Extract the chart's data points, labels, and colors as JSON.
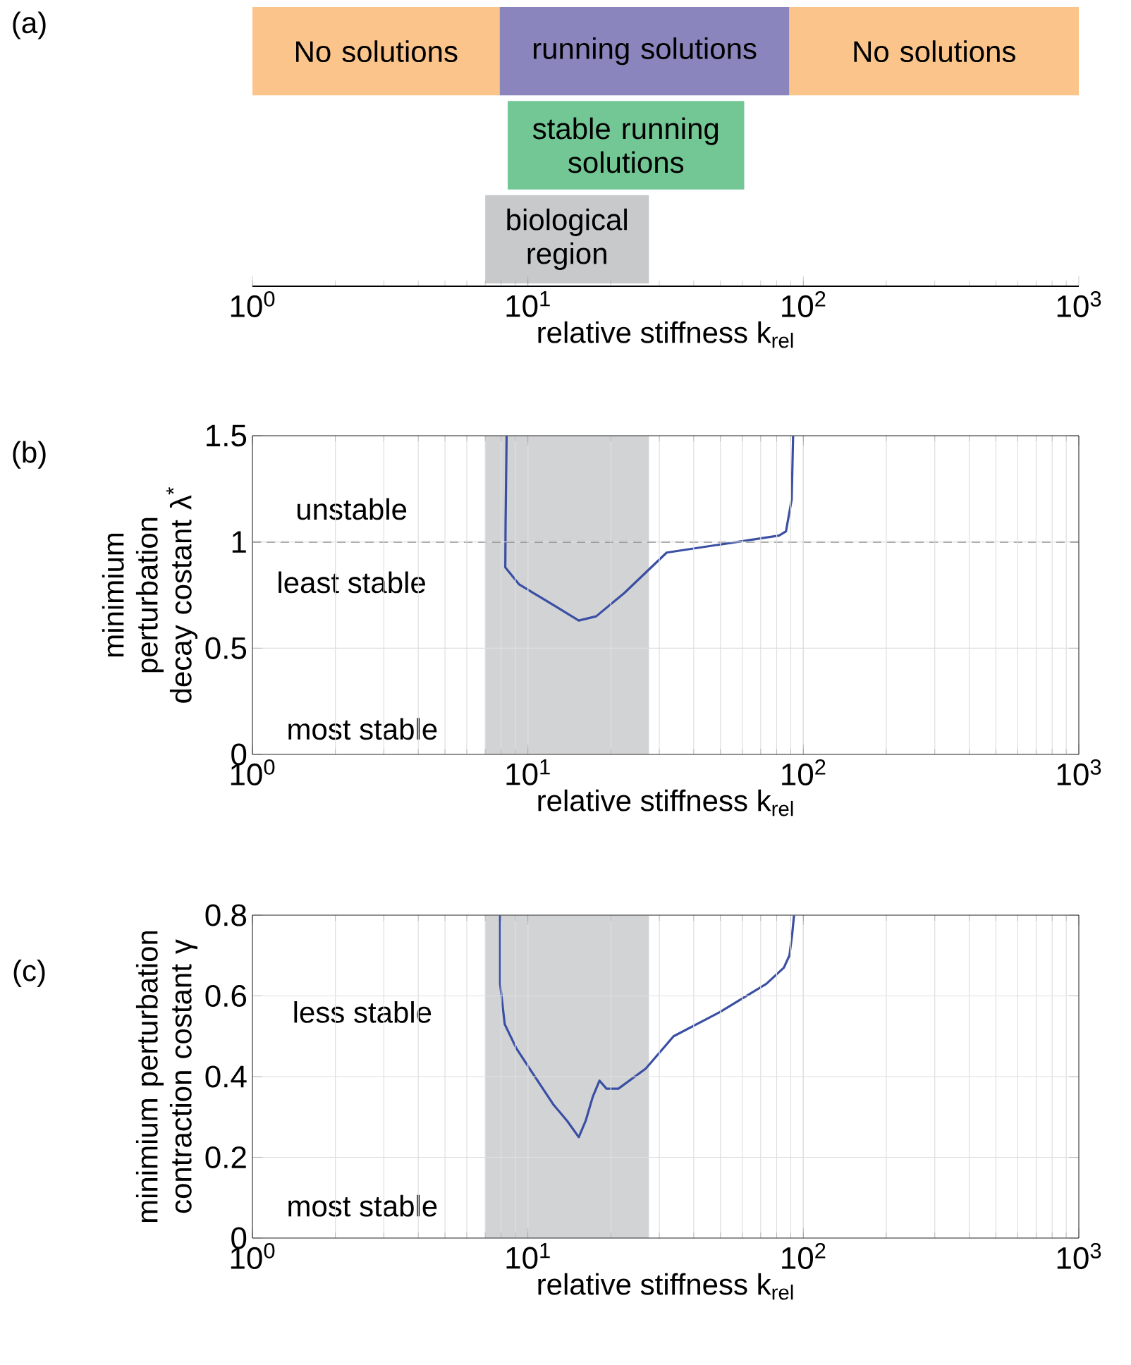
{
  "chart_data": [
    {
      "type": "bar",
      "orientation": "horizontal",
      "stacked": true,
      "log": "x",
      "categories": [
        null,
        null,
        null
      ],
      "series": [
        {
          "colors": [
            "#fbc48b",
            "#72c794",
            "#c8c9cb"
          ],
          "base": [
            1,
            8.45,
            7
          ],
          "values": [
            6.9,
            52.55,
            20.5
          ],
          "value_labels": [
            "No solutions",
            "stable running solutions",
            "biological region"
          ]
        },
        {
          "name": "running solutions",
          "color": "#8a86bd",
          "values": [
            81.1,
            null,
            null
          ]
        },
        {
          "name": "No solutions",
          "color": "#fbc48b",
          "values": [
            911,
            null,
            null
          ]
        }
      ],
      "xlim": [
        1,
        1000
      ],
      "xticks": [
        {
          "value": 1,
          "label": "10$^{0}$"
        },
        {
          "value": 10,
          "label": "10$^{1}$"
        },
        {
          "value": 100,
          "label": "10$^{2}$"
        },
        {
          "value": 1000,
          "label": "10$^{3}$"
        }
      ],
      "xlabel": "relative stiffness k$_{rel}$",
      "tick_labels": "x",
      "annotations": [
        "(a)"
      ]
    },
    {
      "type": "line",
      "log": "x",
      "grid": true,
      "series": [
        {
          "color": "#3a4fa3",
          "x": [
            8.37,
            8.3,
            8.28,
            9.3,
            12.5,
            15.3,
            17.7,
            22.4,
            31.9,
            81.6,
            86.5,
            90.7,
            91.8
          ],
          "values": [
            1.5,
            1.09,
            0.88,
            0.8,
            0.7,
            0.63,
            0.65,
            0.76,
            0.95,
            1.03,
            1.05,
            1.2,
            1.5
          ]
        }
      ],
      "xlim": [
        1,
        1000
      ],
      "xticks": [
        {
          "value": 1,
          "label": "10$^{0}$"
        },
        {
          "value": 10,
          "label": "10$^{1}$"
        },
        {
          "value": 100,
          "label": "10$^{2}$"
        },
        {
          "value": 1000,
          "label": "10$^{3}$"
        }
      ],
      "ylim": [
        0,
        1.5
      ],
      "yticks": [
        0,
        0.5,
        1,
        1.5
      ],
      "ref_lines": [
        {
          "axis": "y",
          "value": 1,
          "color": "#333333",
          "line_style": "dashed"
        }
      ],
      "bands": [
        {
          "axis": "x",
          "from": 7,
          "to": 27.5,
          "color": "#d2d3d5"
        }
      ],
      "xlabel": "relative stiffness k$_{rel}$",
      "ylabel": "minimium perturbation decay costant λ$^{*}$",
      "annotations": [
        "(b)",
        "unstable",
        "least stable",
        "most stable"
      ]
    },
    {
      "type": "line",
      "log": "x",
      "grid": true,
      "series": [
        {
          "color": "#3a4fa3",
          "x": [
            7.93,
            7.93,
            8.24,
            9.08,
            10.6,
            12.4,
            13.9,
            15.3,
            16.2,
            17.2,
            18.2,
            19.3,
            21.3,
            26.8,
            33.8,
            49.8,
            73.4,
            85,
            89,
            91,
            92.5
          ],
          "values": [
            0.8,
            0.63,
            0.53,
            0.47,
            0.4,
            0.33,
            0.29,
            0.25,
            0.29,
            0.35,
            0.39,
            0.37,
            0.37,
            0.42,
            0.5,
            0.56,
            0.63,
            0.67,
            0.7,
            0.75,
            0.8
          ]
        }
      ],
      "xlim": [
        1,
        1000
      ],
      "xticks": [
        {
          "value": 1,
          "label": "10$^{0}$"
        },
        {
          "value": 10,
          "label": "10$^{1}$"
        },
        {
          "value": 100,
          "label": "10$^{2}$"
        },
        {
          "value": 1000,
          "label": "10$^{3}$"
        }
      ],
      "ylim": [
        0,
        0.8
      ],
      "yticks": [
        0,
        0.2,
        0.4,
        0.6,
        0.8
      ],
      "bands": [
        {
          "axis": "x",
          "from": 7,
          "to": 27.5,
          "color": "#d2d3d5"
        }
      ],
      "xlabel": "relative stiffness k$_{rel}$",
      "ylabel": "minimium perturbation contraction costant γ",
      "annotations": [
        "(c)",
        "less stable",
        "most stable"
      ]
    }
  ]
}
